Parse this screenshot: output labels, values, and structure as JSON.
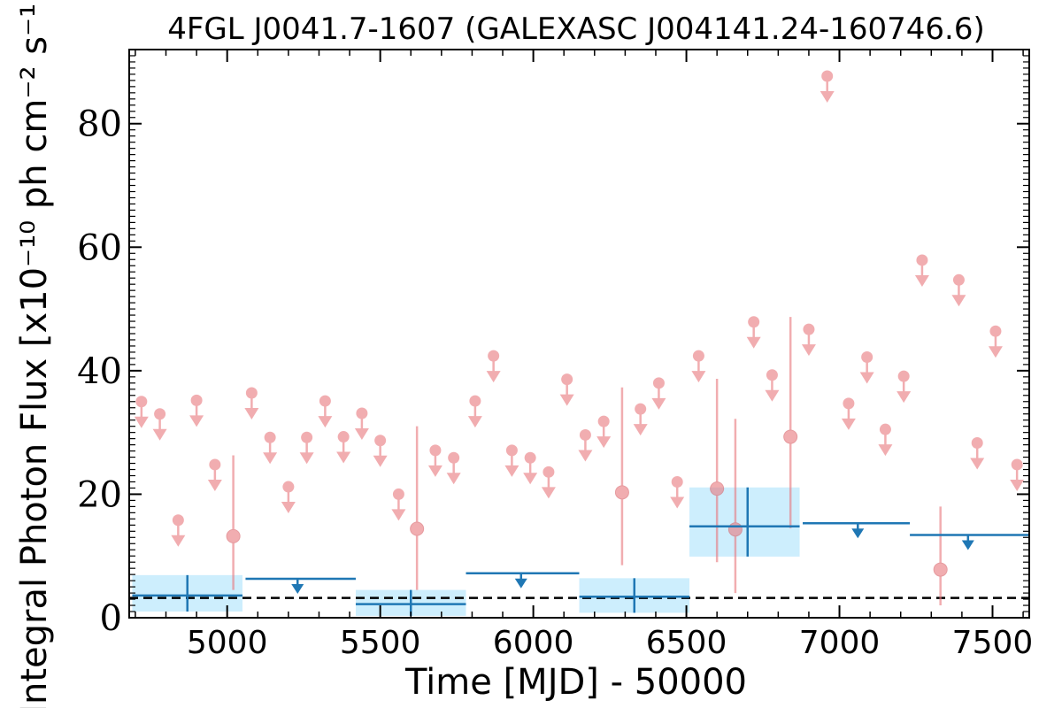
{
  "chart_data": {
    "type": "scatter",
    "title": "4FGL J0041.7-1607 (GALEXASC J004141.24-160746.6)",
    "xlabel": "Time [MJD] - 50000",
    "ylabel": "Integral Photon Flux [x10⁻¹⁰ ph cm⁻² s⁻¹]",
    "xlim": [
      4680,
      7620
    ],
    "ylim": [
      0,
      92
    ],
    "x_ticks": [
      5000,
      5500,
      6000,
      6500,
      7000,
      7500
    ],
    "x_tick_labels": [
      "5000",
      "5500",
      "6000",
      "6500",
      "7000",
      "7500"
    ],
    "y_ticks": [
      0,
      20,
      40,
      60,
      80
    ],
    "y_tick_labels": [
      "0",
      "20",
      "40",
      "60",
      "80"
    ],
    "grid": false,
    "reference_line": {
      "y": 3.2,
      "style": "dashed",
      "color": "#000000"
    },
    "colors": {
      "fine_bins": "#e8777d",
      "coarse_bins": "#1f77b4",
      "coarse_band": "#cdeefd"
    },
    "fine_bins": {
      "upper_limits": [
        {
          "x": 4720,
          "y": 35.0
        },
        {
          "x": 4780,
          "y": 33.0
        },
        {
          "x": 4840,
          "y": 15.8
        },
        {
          "x": 4900,
          "y": 35.2
        },
        {
          "x": 4960,
          "y": 24.8
        },
        {
          "x": 5080,
          "y": 36.4
        },
        {
          "x": 5140,
          "y": 29.2
        },
        {
          "x": 5200,
          "y": 21.2
        },
        {
          "x": 5260,
          "y": 29.2
        },
        {
          "x": 5320,
          "y": 35.1
        },
        {
          "x": 5380,
          "y": 29.3
        },
        {
          "x": 5440,
          "y": 33.1
        },
        {
          "x": 5500,
          "y": 28.7
        },
        {
          "x": 5560,
          "y": 20.0
        },
        {
          "x": 5680,
          "y": 27.1
        },
        {
          "x": 5740,
          "y": 25.9
        },
        {
          "x": 5810,
          "y": 35.1
        },
        {
          "x": 5870,
          "y": 42.4
        },
        {
          "x": 5930,
          "y": 27.1
        },
        {
          "x": 5990,
          "y": 25.9
        },
        {
          "x": 6050,
          "y": 23.6
        },
        {
          "x": 6110,
          "y": 38.6
        },
        {
          "x": 6170,
          "y": 29.6
        },
        {
          "x": 6230,
          "y": 31.8
        },
        {
          "x": 6350,
          "y": 33.8
        },
        {
          "x": 6410,
          "y": 38.0
        },
        {
          "x": 6470,
          "y": 22.0
        },
        {
          "x": 6540,
          "y": 42.4
        },
        {
          "x": 6720,
          "y": 47.9
        },
        {
          "x": 6780,
          "y": 39.3
        },
        {
          "x": 6900,
          "y": 46.7
        },
        {
          "x": 6960,
          "y": 87.7
        },
        {
          "x": 7030,
          "y": 34.7
        },
        {
          "x": 7090,
          "y": 42.2
        },
        {
          "x": 7150,
          "y": 30.5
        },
        {
          "x": 7210,
          "y": 39.1
        },
        {
          "x": 7270,
          "y": 57.9
        },
        {
          "x": 7390,
          "y": 54.7
        },
        {
          "x": 7450,
          "y": 28.3
        },
        {
          "x": 7510,
          "y": 46.4
        },
        {
          "x": 7580,
          "y": 24.8
        }
      ],
      "detections": [
        {
          "x": 5020,
          "y": 13.2,
          "ylow": 4.5,
          "yhigh": 26.3
        },
        {
          "x": 5620,
          "y": 14.4,
          "ylow": 4.5,
          "yhigh": 31.0
        },
        {
          "x": 6290,
          "y": 20.3,
          "ylow": 8.5,
          "yhigh": 37.3
        },
        {
          "x": 6600,
          "y": 20.9,
          "ylow": 9.0,
          "yhigh": 38.7
        },
        {
          "x": 6660,
          "y": 14.3,
          "ylow": 4.0,
          "yhigh": 32.2
        },
        {
          "x": 6840,
          "y": 29.3,
          "ylow": 14.5,
          "yhigh": 48.7
        },
        {
          "x": 7330,
          "y": 7.8,
          "ylow": 2.0,
          "yhigh": 18.0
        }
      ]
    },
    "coarse_bins": {
      "detections": [
        {
          "x": 4870,
          "xlow": 4690,
          "xhigh": 5050,
          "y": 3.6,
          "ylow": 1.0,
          "yhigh": 6.9
        },
        {
          "x": 5600,
          "xlow": 5420,
          "xhigh": 5780,
          "y": 2.2,
          "ylow": 0.3,
          "yhigh": 4.5
        },
        {
          "x": 6330,
          "xlow": 6150,
          "xhigh": 6510,
          "y": 3.4,
          "ylow": 0.8,
          "yhigh": 6.4
        },
        {
          "x": 6700,
          "xlow": 6510,
          "xhigh": 6870,
          "y": 14.8,
          "ylow": 9.9,
          "yhigh": 21.1
        }
      ],
      "upper_limits": [
        {
          "x": 5230,
          "xlow": 5060,
          "xhigh": 5420,
          "y": 6.3
        },
        {
          "x": 5960,
          "xlow": 5780,
          "xhigh": 6150,
          "y": 7.2
        },
        {
          "x": 7060,
          "xlow": 6880,
          "xhigh": 7230,
          "y": 15.3
        },
        {
          "x": 7420,
          "xlow": 7230,
          "xhigh": 7620,
          "y": 13.4
        }
      ]
    }
  }
}
